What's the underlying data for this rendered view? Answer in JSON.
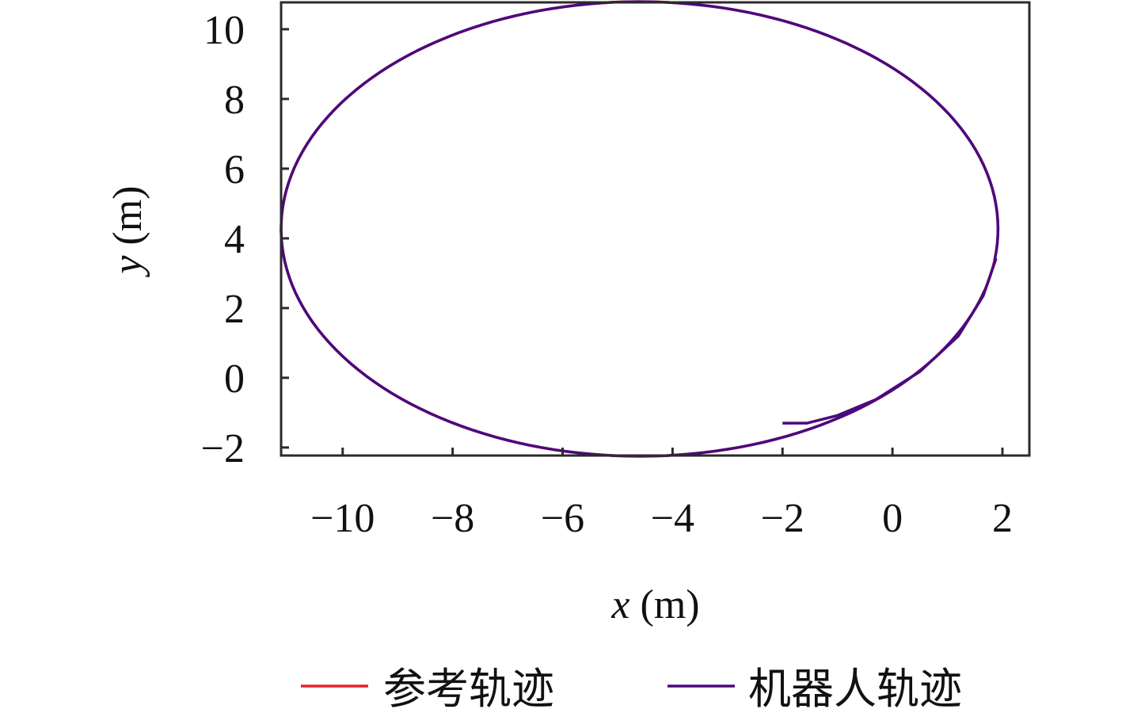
{
  "chart_data": {
    "type": "line",
    "title": "",
    "xlabel": {
      "var": "x",
      "unit": "(m)"
    },
    "ylabel": {
      "var": "y",
      "unit": "(m)"
    },
    "xlim": [
      -11.12,
      2.49
    ],
    "ylim": [
      -2.23,
      10.77
    ],
    "xticks": [
      -10,
      -8,
      -6,
      -4,
      -2,
      0,
      2
    ],
    "yticks": [
      -2,
      0,
      2,
      4,
      6,
      8,
      10
    ],
    "xtick_labels": [
      "−10",
      "−8",
      "−6",
      "−4",
      "−2",
      "0",
      "2"
    ],
    "ytick_labels": [
      "−2",
      "0",
      "2",
      "4",
      "6",
      "8",
      "10"
    ],
    "grid": false,
    "legend_placement": "bottom",
    "series": [
      {
        "name": "参考轨迹",
        "color": "#e8202a",
        "shape": "circle",
        "center": [
          -4.6,
          4.27
        ],
        "radius": 6.52
      },
      {
        "name": "机器人轨迹",
        "color": "#4b0a7d",
        "initial_points": [
          [
            -2,
            -1.3
          ],
          [
            -1.55,
            -1.3
          ],
          [
            -1.0,
            -1.08
          ],
          [
            -0.3,
            -0.62
          ],
          [
            0.5,
            0.18
          ],
          [
            1.2,
            1.2
          ],
          [
            1.65,
            2.35
          ],
          [
            1.88,
            3.4
          ]
        ],
        "then_follows": "参考轨迹"
      }
    ]
  }
}
